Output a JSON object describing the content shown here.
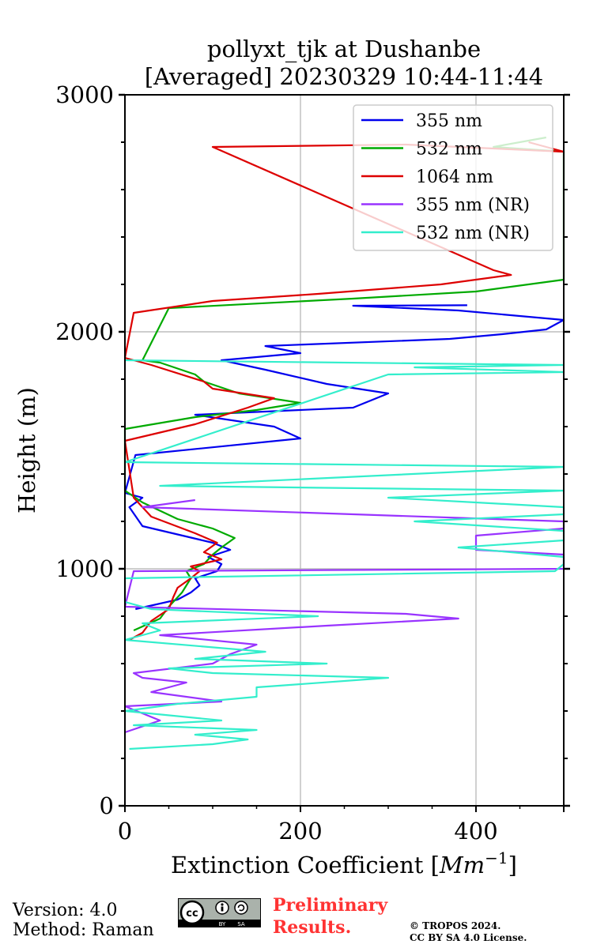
{
  "chart_data": {
    "type": "line",
    "title_line1": "pollyxt_tjk at Dushanbe",
    "title_line2": "[Averaged] 20230329 10:44-11:44",
    "xlabel": "Extinction Coefficient [",
    "xlabel_unit": "Mm",
    "xlabel_exp": "−1",
    "xlabel_close": "]",
    "ylabel": "Height (m)",
    "xlim": [
      0,
      500
    ],
    "ylim": [
      0,
      3000
    ],
    "x_ticks": [
      0,
      200,
      400
    ],
    "x_tick_labels": [
      "0",
      "200",
      "400"
    ],
    "y_ticks": [
      0,
      1000,
      2000,
      3000
    ],
    "y_tick_labels": [
      "0",
      "1000",
      "2000",
      "3000"
    ],
    "grid": true,
    "legend_position": "top-right",
    "series": [
      {
        "name": "355 nm",
        "color": "#0000ee",
        "points": [
          [
            12,
            830
          ],
          [
            30,
            845
          ],
          [
            60,
            870
          ],
          [
            75,
            900
          ],
          [
            85,
            930
          ],
          [
            80,
            960
          ],
          [
            105,
            990
          ],
          [
            110,
            1020
          ],
          [
            95,
            1050
          ],
          [
            120,
            1080
          ],
          [
            100,
            1110
          ],
          [
            20,
            1180
          ],
          [
            5,
            1260
          ],
          [
            20,
            1300
          ],
          [
            0,
            1320
          ],
          [
            12,
            1480
          ],
          [
            200,
            1550
          ],
          [
            170,
            1600
          ],
          [
            80,
            1650
          ],
          [
            260,
            1680
          ],
          [
            300,
            1740
          ],
          [
            230,
            1780
          ],
          [
            160,
            1840
          ],
          [
            110,
            1880
          ],
          [
            200,
            1910
          ],
          [
            160,
            1940
          ],
          [
            370,
            1970
          ],
          [
            430,
            1990
          ],
          [
            480,
            2010
          ],
          [
            500,
            2050
          ],
          [
            380,
            2090
          ],
          [
            260,
            2110
          ],
          [
            390,
            2112
          ]
        ]
      },
      {
        "name": "532 nm",
        "color": "#00aa00",
        "points": [
          [
            10,
            740
          ],
          [
            40,
            790
          ],
          [
            50,
            840
          ],
          [
            65,
            900
          ],
          [
            75,
            960
          ],
          [
            70,
            990
          ],
          [
            90,
            1020
          ],
          [
            100,
            1060
          ],
          [
            110,
            1090
          ],
          [
            125,
            1130
          ],
          [
            100,
            1170
          ],
          [
            60,
            1210
          ],
          [
            20,
            1280
          ],
          [
            0,
            1330
          ],
          [
            0,
            1590
          ],
          [
            80,
            1640
          ],
          [
            150,
            1670
          ],
          [
            200,
            1700
          ],
          [
            130,
            1740
          ],
          [
            90,
            1790
          ],
          [
            80,
            1820
          ],
          [
            40,
            1870
          ],
          [
            20,
            1880
          ],
          [
            50,
            2100
          ],
          [
            260,
            2140
          ],
          [
            400,
            2170
          ],
          [
            500,
            2220
          ],
          [
            500,
            2760
          ],
          [
            420,
            2780
          ],
          [
            480,
            2820
          ]
        ]
      },
      {
        "name": "1064 nm",
        "color": "#dd0000",
        "points": [
          [
            5,
            700
          ],
          [
            20,
            730
          ],
          [
            30,
            780
          ],
          [
            50,
            830
          ],
          [
            55,
            880
          ],
          [
            60,
            920
          ],
          [
            75,
            960
          ],
          [
            85,
            990
          ],
          [
            75,
            1010
          ],
          [
            110,
            1040
          ],
          [
            90,
            1070
          ],
          [
            105,
            1110
          ],
          [
            80,
            1150
          ],
          [
            30,
            1220
          ],
          [
            10,
            1300
          ],
          [
            0,
            1540
          ],
          [
            80,
            1610
          ],
          [
            140,
            1680
          ],
          [
            170,
            1720
          ],
          [
            100,
            1760
          ],
          [
            90,
            1790
          ],
          [
            30,
            1860
          ],
          [
            0,
            1890
          ],
          [
            10,
            2080
          ],
          [
            100,
            2130
          ],
          [
            220,
            2160
          ],
          [
            360,
            2200
          ],
          [
            440,
            2240
          ],
          [
            420,
            2260
          ],
          [
            100,
            2780
          ],
          [
            320,
            2790
          ],
          [
            500,
            2760
          ],
          [
            460,
            2800
          ]
        ]
      },
      {
        "name": "355 nm (NR)",
        "color": "#9933ff",
        "points": [
          [
            0,
            310
          ],
          [
            40,
            360
          ],
          [
            0,
            420
          ],
          [
            110,
            440
          ],
          [
            30,
            480
          ],
          [
            70,
            520
          ],
          [
            20,
            540
          ],
          [
            10,
            560
          ],
          [
            100,
            600
          ],
          [
            120,
            640
          ],
          [
            150,
            680
          ],
          [
            40,
            720
          ],
          [
            230,
            760
          ],
          [
            380,
            790
          ],
          [
            320,
            810
          ],
          [
            0,
            840
          ],
          [
            10,
            990
          ],
          [
            500,
            1000
          ],
          [
            500,
            1060
          ],
          [
            400,
            1080
          ],
          [
            400,
            1140
          ],
          [
            500,
            1170
          ],
          [
            500,
            1200
          ],
          [
            20,
            1260
          ],
          [
            80,
            1290
          ]
        ]
      },
      {
        "name": "532 nm (NR)",
        "color": "#33eecc",
        "points": [
          [
            5,
            240
          ],
          [
            100,
            260
          ],
          [
            140,
            280
          ],
          [
            80,
            300
          ],
          [
            150,
            320
          ],
          [
            10,
            340
          ],
          [
            110,
            360
          ],
          [
            0,
            400
          ],
          [
            60,
            430
          ],
          [
            150,
            460
          ],
          [
            150,
            500
          ],
          [
            300,
            540
          ],
          [
            100,
            560
          ],
          [
            50,
            580
          ],
          [
            230,
            600
          ],
          [
            80,
            620
          ],
          [
            160,
            650
          ],
          [
            0,
            700
          ],
          [
            40,
            740
          ],
          [
            20,
            770
          ],
          [
            220,
            800
          ],
          [
            30,
            830
          ],
          [
            0,
            860
          ],
          [
            0,
            960
          ],
          [
            490,
            990
          ],
          [
            500,
            1020
          ],
          [
            500,
            1050
          ],
          [
            380,
            1090
          ],
          [
            500,
            1120
          ],
          [
            500,
            1160
          ],
          [
            330,
            1200
          ],
          [
            500,
            1230
          ],
          [
            500,
            1260
          ],
          [
            300,
            1300
          ],
          [
            500,
            1330
          ],
          [
            40,
            1350
          ],
          [
            500,
            1430
          ],
          [
            0,
            1450
          ],
          [
            300,
            1820
          ],
          [
            500,
            1830
          ],
          [
            330,
            1850
          ],
          [
            500,
            1860
          ],
          [
            0,
            1880
          ]
        ]
      }
    ]
  },
  "footer": {
    "version": "Version: 4.0",
    "method": "Method: Raman",
    "prelim_line1": "Preliminary",
    "prelim_line2": "Results.",
    "copyright_line1": "© TROPOS 2024.",
    "copyright_line2": "CC BY SA 4.0 License.",
    "cc_by": "BY",
    "cc_sa": "SA"
  }
}
